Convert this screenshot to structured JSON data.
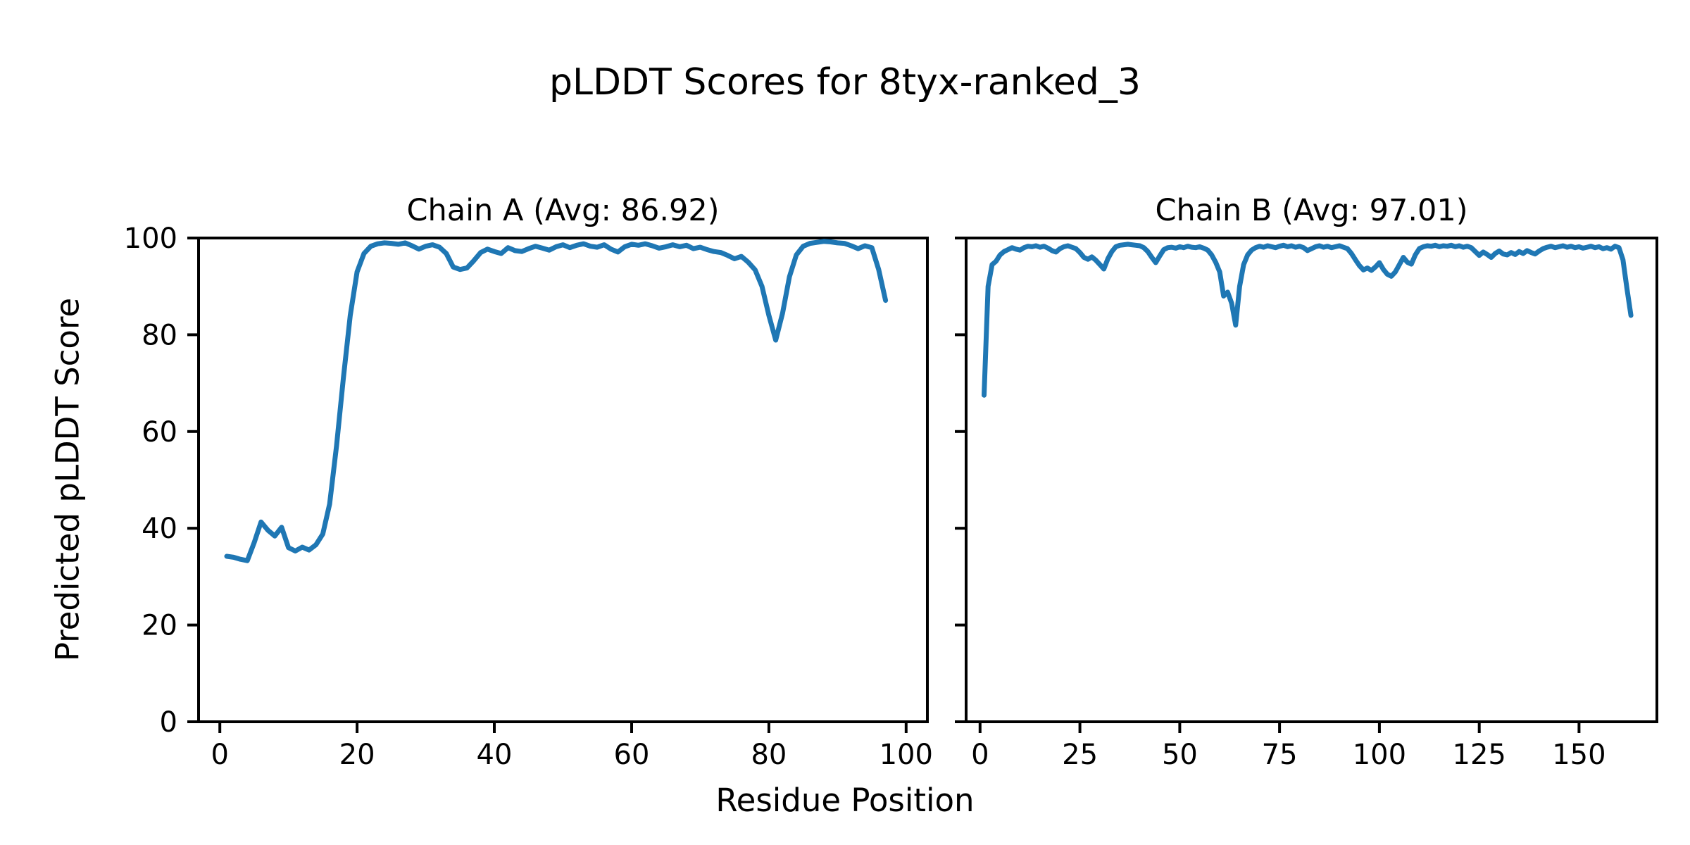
{
  "figure": {
    "title": "pLDDT Scores for 8tyx-ranked_3",
    "xlabel": "Residue Position",
    "ylabel": "Predicted pLDDT Score",
    "background_color": "#ffffff",
    "line_color": "#1f77b4",
    "axis_color": "#000000"
  },
  "chart_data": [
    {
      "type": "line",
      "title": "Chain A (Avg: 86.92)",
      "average_plddt": 86.92,
      "xlabel_shared": "Residue Position",
      "ylabel": "Predicted pLDDT Score",
      "xlim": [
        -3.1,
        103.1
      ],
      "ylim": [
        0,
        100
      ],
      "x_ticks": [
        0,
        20,
        40,
        60,
        80,
        100
      ],
      "y_ticks": [
        0,
        20,
        40,
        60,
        80,
        100
      ],
      "y_tick_labels_visible": true,
      "grid": false,
      "legend": "none",
      "x_start": 1,
      "x_step": 1,
      "values": [
        34.2,
        34.0,
        33.6,
        33.3,
        37.0,
        41.3,
        39.6,
        38.4,
        40.2,
        36.0,
        35.3,
        36.1,
        35.5,
        36.6,
        38.8,
        45.0,
        57.0,
        71.0,
        84.0,
        93.0,
        96.8,
        98.3,
        98.8,
        99.0,
        98.9,
        98.7,
        99.0,
        98.4,
        97.7,
        98.3,
        98.6,
        98.1,
        96.8,
        94.0,
        93.5,
        93.8,
        95.3,
        97.0,
        97.7,
        97.2,
        96.8,
        98.0,
        97.4,
        97.2,
        97.8,
        98.3,
        97.9,
        97.5,
        98.2,
        98.6,
        98.0,
        98.5,
        98.8,
        98.3,
        98.1,
        98.6,
        97.7,
        97.1,
        98.2,
        98.7,
        98.5,
        98.8,
        98.4,
        97.9,
        98.2,
        98.6,
        98.2,
        98.5,
        97.8,
        98.1,
        97.6,
        97.2,
        97.0,
        96.4,
        95.7,
        96.2,
        95.0,
        93.4,
        90.0,
        84.0,
        78.9,
        84.5,
        92.0,
        96.5,
        98.3,
        98.9,
        99.1,
        99.3,
        99.2,
        99.0,
        98.9,
        98.4,
        97.8,
        98.4,
        98.0,
        93.5,
        87.1
      ]
    },
    {
      "type": "line",
      "title": "Chain B (Avg: 97.01)",
      "average_plddt": 97.01,
      "xlabel_shared": "Residue Position",
      "xlim": [
        -3.5,
        169.5
      ],
      "ylim": [
        0,
        100
      ],
      "x_ticks": [
        0,
        25,
        50,
        75,
        100,
        125,
        150
      ],
      "y_ticks": [
        0,
        20,
        40,
        60,
        80,
        100
      ],
      "y_tick_labels_visible": false,
      "grid": false,
      "legend": "none",
      "x_start": 1,
      "x_step": 1,
      "values": [
        67.5,
        90.0,
        94.5,
        95.2,
        96.5,
        97.2,
        97.6,
        98.0,
        97.7,
        97.5,
        98.0,
        98.3,
        98.2,
        98.4,
        98.1,
        98.3,
        97.9,
        97.4,
        97.1,
        97.8,
        98.2,
        98.4,
        98.1,
        97.8,
        97.0,
        96.0,
        95.6,
        96.1,
        95.4,
        94.5,
        93.6,
        95.7,
        97.2,
        98.2,
        98.5,
        98.6,
        98.7,
        98.6,
        98.5,
        98.4,
        98.0,
        97.2,
        96.0,
        94.9,
        96.3,
        97.6,
        98.0,
        98.1,
        97.9,
        98.2,
        98.0,
        98.3,
        98.1,
        98.0,
        98.2,
        97.9,
        97.5,
        96.5,
        95.0,
        93.0,
        88.0,
        88.8,
        86.5,
        82.0,
        90.0,
        94.5,
        96.5,
        97.5,
        98.0,
        98.3,
        98.1,
        98.4,
        98.2,
        98.0,
        98.3,
        98.5,
        98.2,
        98.4,
        98.1,
        98.3,
        98.0,
        97.4,
        97.8,
        98.2,
        98.4,
        98.1,
        98.3,
        98.0,
        98.2,
        98.4,
        98.1,
        97.8,
        96.8,
        95.5,
        94.3,
        93.4,
        93.8,
        93.3,
        94.0,
        94.9,
        93.5,
        92.5,
        92.1,
        93.0,
        94.5,
        96.0,
        95.0,
        94.6,
        96.5,
        97.8,
        98.2,
        98.4,
        98.3,
        98.5,
        98.2,
        98.4,
        98.3,
        98.5,
        98.2,
        98.4,
        98.1,
        98.3,
        98.0,
        97.2,
        96.4,
        97.1,
        96.6,
        96.0,
        96.8,
        97.3,
        96.7,
        96.5,
        97.0,
        96.6,
        97.2,
        96.8,
        97.4,
        97.0,
        96.7,
        97.3,
        97.8,
        98.1,
        98.3,
        98.0,
        98.2,
        98.4,
        98.1,
        98.3,
        98.0,
        98.2,
        97.9,
        98.1,
        98.3,
        98.0,
        98.2,
        97.8,
        98.0,
        97.7,
        98.3,
        98.0,
        95.5,
        89.5,
        84.0
      ]
    }
  ]
}
